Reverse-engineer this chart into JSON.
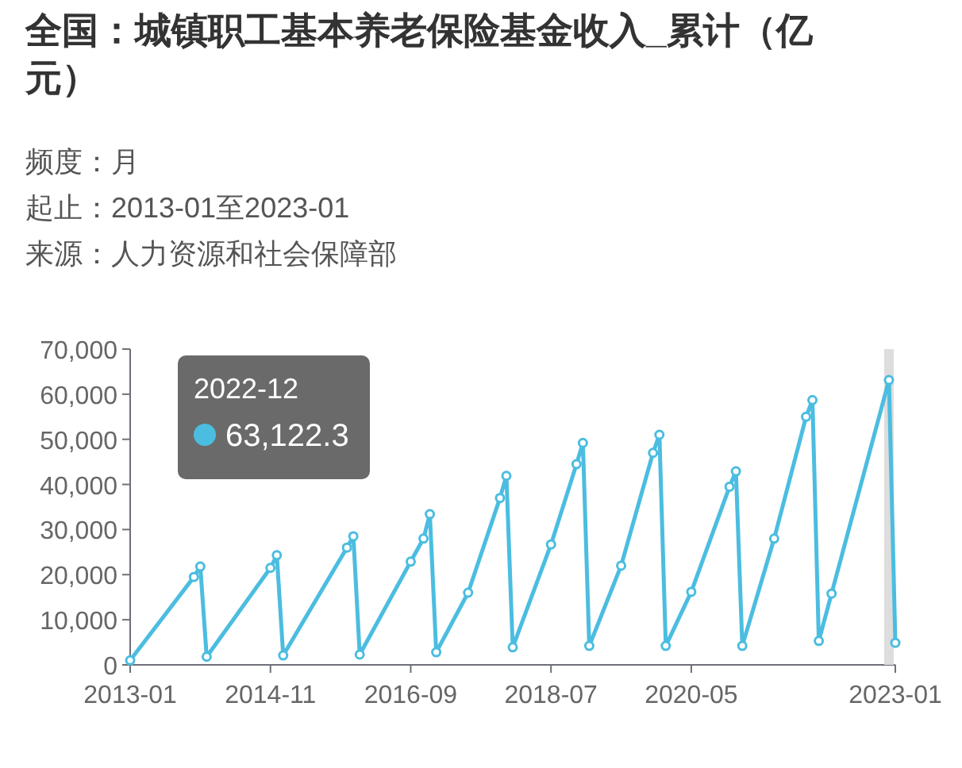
{
  "chart_data": {
    "type": "line",
    "title": "全国：城镇职工基本养老保险基金收入_累计（亿元）",
    "subtitle": "频度：月",
    "x": [
      "2013-01",
      "2013-11",
      "2013-12",
      "2014-01",
      "2014-11",
      "2014-12",
      "2015-01",
      "2015-11",
      "2015-12",
      "2016-01",
      "2016-09",
      "2016-11",
      "2016-12",
      "2017-01",
      "2017-06",
      "2017-11",
      "2017-12",
      "2018-01",
      "2018-07",
      "2018-11",
      "2018-12",
      "2019-01",
      "2019-06",
      "2019-11",
      "2019-12",
      "2020-01",
      "2020-05",
      "2020-11",
      "2020-12",
      "2021-01",
      "2021-06",
      "2021-11",
      "2021-12",
      "2022-01",
      "2022-03",
      "2022-12",
      "2023-01"
    ],
    "series": [
      {
        "color": "#4bbde0",
        "values": [
          1000,
          19500,
          21800,
          1800,
          21500,
          24300,
          2100,
          26000,
          28500,
          2300,
          22900,
          28000,
          33400,
          2800,
          16000,
          37000,
          41900,
          3900,
          26700,
          44500,
          49200,
          4200,
          22000,
          47000,
          51000,
          4200,
          16200,
          39500,
          42900,
          4200,
          28000,
          55000,
          58700,
          5300,
          15800,
          63122.3,
          4900
        ]
      }
    ],
    "xlim": [
      "2013-01",
      "2023-01"
    ],
    "xticks": [
      {
        "value": "2013-01",
        "label": "2013-01"
      },
      {
        "value": "2014-11",
        "label": "2014-11"
      },
      {
        "value": "2016-09",
        "label": "2016-09"
      },
      {
        "value": "2018-07",
        "label": "2018-07"
      },
      {
        "value": "2020-05",
        "label": "2020-05"
      },
      {
        "value": "2023-01",
        "label": "2023-01"
      }
    ],
    "ylim": [
      0,
      70000
    ],
    "yticks": [
      0,
      {
        "value": 10000,
        "label": "10,000"
      },
      {
        "value": 20000,
        "label": "20,000"
      },
      {
        "value": 30000,
        "label": "30,000"
      },
      {
        "value": 40000,
        "label": "40,000"
      },
      {
        "value": 50000,
        "label": "50,000"
      },
      {
        "value": 60000,
        "label": "60,000"
      },
      {
        "value": 70000,
        "label": "70,000"
      }
    ],
    "marker": "circle",
    "line_style": "solid",
    "grid": false,
    "ref_lines": [
      {
        "axis": "x",
        "value": "2022-12",
        "color": "#dddddd"
      }
    ],
    "annotations": [
      "起止：2013-01至2023-01",
      "来源：人力资源和社会保障部",
      "2022-12",
      "63,122.3"
    ]
  }
}
